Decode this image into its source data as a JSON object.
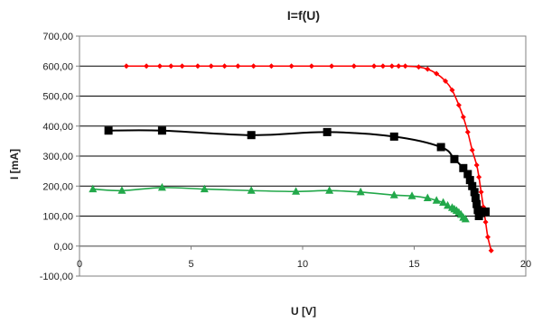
{
  "chart_data": {
    "type": "line",
    "title": "I=f(U)",
    "xlabel": "U [V]",
    "ylabel": "I [mA]",
    "xlim": [
      0,
      20
    ],
    "ylim": [
      -100,
      700
    ],
    "x_ticks": [
      0,
      5,
      10,
      15,
      20
    ],
    "y_ticks": [
      -100,
      0,
      100,
      200,
      300,
      400,
      500,
      600,
      700
    ],
    "x_tick_labels": [
      "0",
      "5",
      "10",
      "15",
      "20"
    ],
    "y_tick_labels": [
      "-100,00",
      "0,00",
      "100,00",
      "200,00",
      "300,00",
      "400,00",
      "500,00",
      "600,00",
      "700,00"
    ],
    "grid": "horizontal",
    "legend": "none",
    "series": [
      {
        "color": "#ff0000",
        "marker": "diamond",
        "points": [
          [
            2.1,
            600
          ],
          [
            3.0,
            600
          ],
          [
            3.6,
            600
          ],
          [
            4.1,
            600
          ],
          [
            4.6,
            600
          ],
          [
            5.3,
            600
          ],
          [
            5.9,
            600
          ],
          [
            6.5,
            600
          ],
          [
            7.1,
            600
          ],
          [
            7.8,
            600
          ],
          [
            8.6,
            600
          ],
          [
            9.5,
            600
          ],
          [
            10.4,
            600
          ],
          [
            11.3,
            600
          ],
          [
            12.3,
            600
          ],
          [
            13.2,
            600
          ],
          [
            13.6,
            600
          ],
          [
            14.0,
            600
          ],
          [
            14.3,
            600
          ],
          [
            14.6,
            600
          ],
          [
            15.2,
            597
          ],
          [
            15.6,
            590
          ],
          [
            16.0,
            575
          ],
          [
            16.4,
            550
          ],
          [
            16.7,
            520
          ],
          [
            17.0,
            470
          ],
          [
            17.2,
            430
          ],
          [
            17.4,
            380
          ],
          [
            17.6,
            320
          ],
          [
            17.8,
            270
          ],
          [
            17.9,
            230
          ],
          [
            18.0,
            180
          ],
          [
            18.1,
            130
          ],
          [
            18.2,
            80
          ],
          [
            18.3,
            30
          ],
          [
            18.45,
            -15
          ]
        ]
      },
      {
        "color": "#000000",
        "marker": "square",
        "points": [
          [
            1.3,
            385
          ],
          [
            3.7,
            385
          ],
          [
            7.7,
            370
          ],
          [
            11.1,
            380
          ],
          [
            14.1,
            365
          ],
          [
            16.2,
            330
          ],
          [
            16.8,
            290
          ],
          [
            17.2,
            260
          ],
          [
            17.4,
            240
          ],
          [
            17.5,
            220
          ],
          [
            17.6,
            200
          ],
          [
            17.7,
            180
          ],
          [
            17.75,
            160
          ],
          [
            17.8,
            140
          ],
          [
            17.85,
            120
          ],
          [
            17.9,
            100
          ],
          [
            18.0,
            110
          ],
          [
            18.2,
            115
          ]
        ]
      },
      {
        "color": "#22a84a",
        "marker": "triangle",
        "points": [
          [
            0.6,
            190
          ],
          [
            1.9,
            185
          ],
          [
            3.7,
            195
          ],
          [
            5.6,
            190
          ],
          [
            7.7,
            185
          ],
          [
            9.7,
            182
          ],
          [
            11.2,
            185
          ],
          [
            12.6,
            180
          ],
          [
            14.1,
            170
          ],
          [
            14.9,
            167
          ],
          [
            15.6,
            160
          ],
          [
            16.0,
            152
          ],
          [
            16.3,
            145
          ],
          [
            16.5,
            135
          ],
          [
            16.7,
            128
          ],
          [
            16.8,
            123
          ],
          [
            16.9,
            118
          ],
          [
            17.0,
            112
          ],
          [
            17.1,
            105
          ],
          [
            17.2,
            95
          ],
          [
            17.3,
            90
          ]
        ]
      }
    ]
  }
}
